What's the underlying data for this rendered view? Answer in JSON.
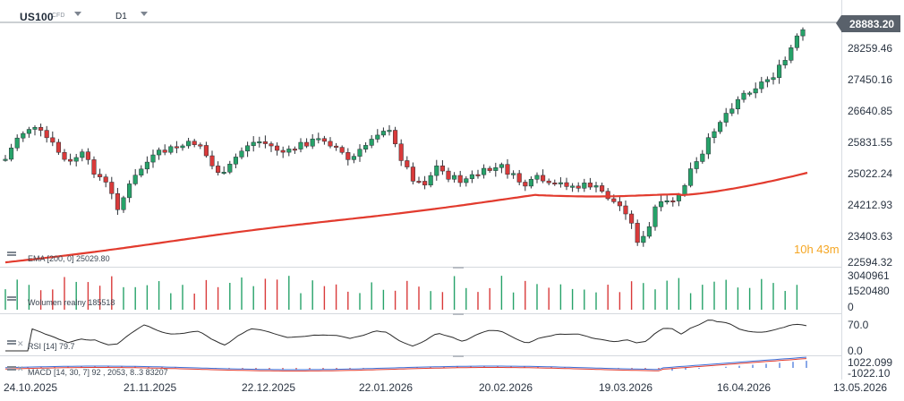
{
  "header": {
    "symbol": "US100",
    "instrument_type": "CFD",
    "timeframe": "D1"
  },
  "price_axis": {
    "current_price": "28883.20",
    "ticks": [
      "28259.46",
      "27450.16",
      "26640.85",
      "25831.55",
      "25022.24",
      "24212.93",
      "23403.63",
      "22594.32"
    ]
  },
  "countdown": "10h 43m",
  "indicators": {
    "ema_label": "EMA [200, 0]  25029.80",
    "volume_label": "Wolumen realny  185518",
    "volume_ticks": [
      "3040961",
      "1520480",
      "0"
    ],
    "rsi_label": "RSI [14]  79.7",
    "rsi_ticks": [
      "70.0",
      "0.0"
    ],
    "macd_label": "MACD [14, 30, 7]  92 , 2053, 8..3  83207",
    "macd_ticks": [
      "1022.099",
      "-1022.10"
    ]
  },
  "time_axis": {
    "dates": [
      "24.10.2025",
      "21.11.2025",
      "22.12.2025",
      "22.01.2026",
      "20.02.2026",
      "19.03.2026",
      "16.04.2026",
      "13.05.2026"
    ]
  },
  "colors": {
    "bull": "#26a269",
    "bear": "#d93a3a",
    "ema": "#e23b2e",
    "rsi_line": "#2b2b2b",
    "macd_line": "#3a6ed8",
    "signal_line": "#e23b2e",
    "accent": "#f5a623"
  },
  "icons": {
    "symbol_dropdown": "chevron-down-icon",
    "timeframe_dropdown": "chevron-down-icon",
    "indicator_menu": "hamburger-icon",
    "indicator_close": "close-icon"
  }
}
